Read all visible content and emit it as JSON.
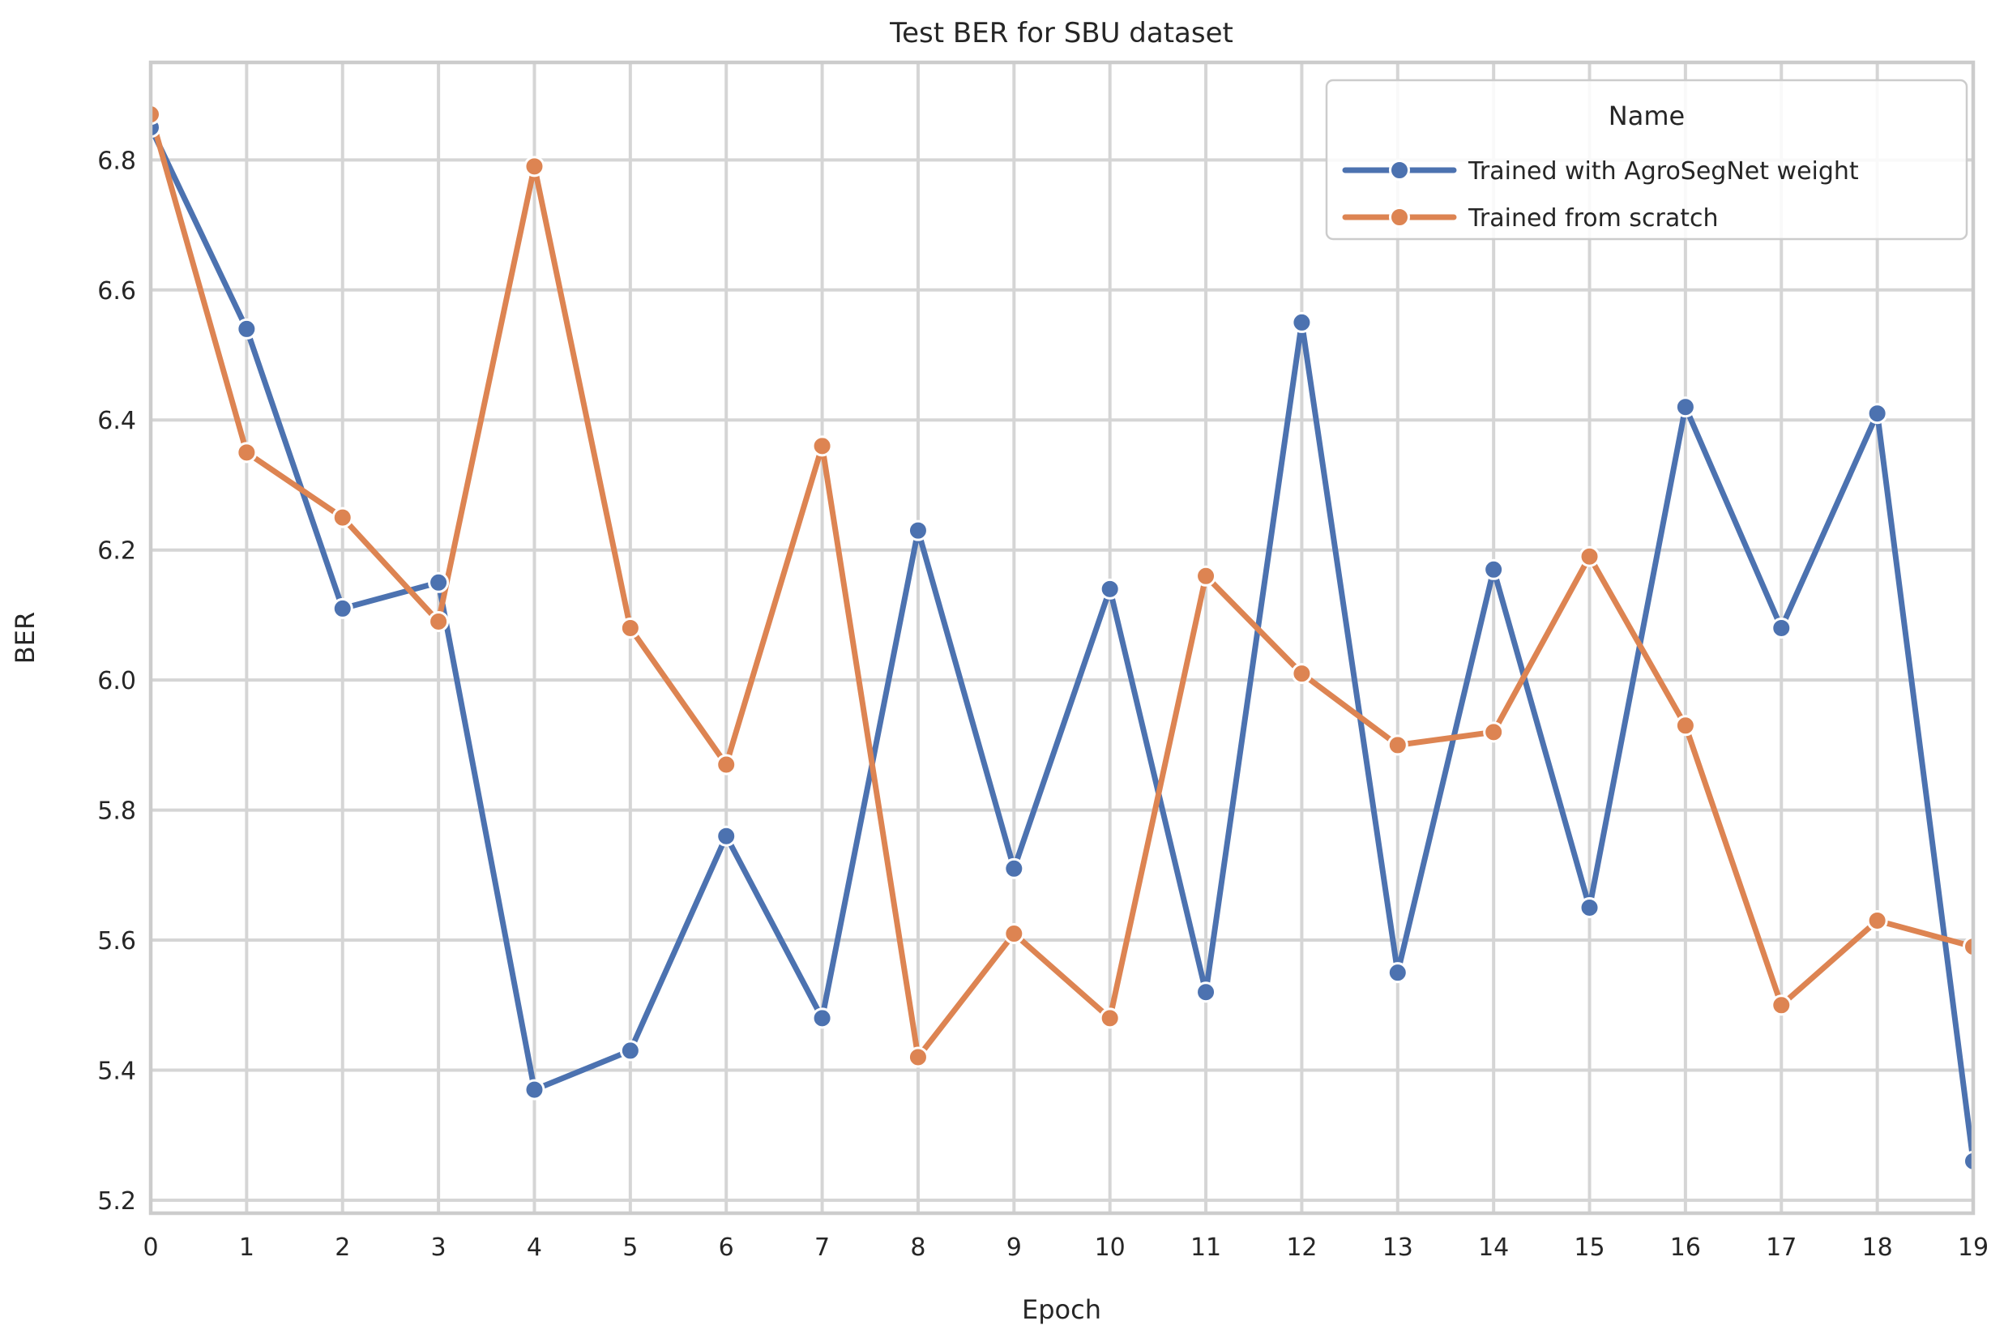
{
  "figure": {
    "background": "#ffffff",
    "grid_color": "#d5d5d5",
    "border_color": "#cccccc",
    "text_color": "#262626"
  },
  "chart_data": {
    "type": "line",
    "title": "Test BER for SBU dataset",
    "xlabel": "Epoch",
    "ylabel": "BER",
    "grid": true,
    "legend_position": "upper right",
    "legend_title": "Name",
    "xlim": [
      0,
      19
    ],
    "ylim": [
      5.18,
      6.95
    ],
    "x_ticks": [
      "0",
      "1",
      "2",
      "3",
      "4",
      "5",
      "6",
      "7",
      "8",
      "9",
      "10",
      "11",
      "12",
      "13",
      "14",
      "15",
      "16",
      "17",
      "18",
      "19"
    ],
    "y_ticks": [
      "5.2",
      "5.4",
      "5.6",
      "5.8",
      "6.0",
      "6.2",
      "6.4",
      "6.6",
      "6.8"
    ],
    "x": [
      0,
      1,
      2,
      3,
      4,
      5,
      6,
      7,
      8,
      9,
      10,
      11,
      12,
      13,
      14,
      15,
      16,
      17,
      18,
      19
    ],
    "series": [
      {
        "name": "Trained with AgroSegNet weight",
        "color": "#4C72B0",
        "values": [
          6.85,
          6.54,
          6.11,
          6.15,
          5.37,
          5.43,
          5.76,
          5.48,
          6.23,
          5.71,
          6.14,
          5.52,
          6.55,
          5.55,
          6.17,
          5.65,
          6.42,
          6.08,
          6.41,
          5.26
        ]
      },
      {
        "name": "Trained from scratch",
        "color": "#DD8452",
        "values": [
          6.87,
          6.35,
          6.25,
          6.09,
          6.79,
          6.08,
          5.87,
          6.36,
          5.42,
          5.61,
          5.48,
          6.16,
          6.01,
          5.9,
          5.92,
          6.19,
          5.93,
          5.5,
          5.63,
          5.59
        ]
      }
    ]
  }
}
